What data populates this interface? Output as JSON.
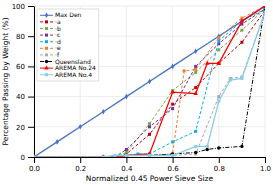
{
  "chart_data": {
    "type": "line",
    "xlabel": "Normalized 0.45 Power Sieve Size",
    "ylabel": "Percentage Passing by Weight (%)",
    "xlim": [
      0,
      1.0
    ],
    "ylim": [
      0,
      100
    ],
    "xticks": [
      {
        "value": 0,
        "label": "0.0"
      },
      0.2,
      0.4,
      0.6,
      0.8,
      {
        "value": 1.0,
        "label": "1.0"
      }
    ],
    "yticks": [
      0,
      20,
      40,
      60,
      80,
      100
    ],
    "grid": true,
    "legend": "upper left",
    "series": [
      {
        "name": "Max Den",
        "color": "#4472C4",
        "line_style": "solid",
        "marker": "diamond",
        "x": [
          0,
          0.1,
          0.2,
          0.3,
          0.4,
          0.5,
          0.6,
          0.7,
          0.8,
          0.9,
          1.0
        ],
        "values": [
          0,
          10,
          20,
          30,
          40,
          50,
          60,
          70,
          80,
          90,
          100
        ]
      },
      {
        "name": "·a",
        "color": "#C00000",
        "line_style": "dashed",
        "marker": "square",
        "x": [
          0,
          0.3,
          0.35,
          0.4,
          0.5,
          0.6,
          0.7,
          0.8,
          0.9,
          1.0
        ],
        "values": [
          0,
          0,
          0,
          2,
          15,
          35,
          46,
          62,
          76,
          97
        ]
      },
      {
        "name": "·b",
        "color": "#70AD47",
        "line_style": "dashed",
        "marker": "square",
        "x": [
          0,
          0.35,
          0.4,
          0.5,
          0.6,
          0.7,
          0.8,
          0.9,
          1.0
        ],
        "values": [
          0,
          0,
          3,
          22,
          44,
          56,
          71,
          84,
          98
        ]
      },
      {
        "name": "·c",
        "color": "#7030A0",
        "line_style": "dashed",
        "marker": "square",
        "x": [
          0,
          0.35,
          0.4,
          0.5,
          0.6,
          0.7,
          0.8,
          0.9,
          1.0
        ],
        "values": [
          0,
          0,
          5,
          20,
          32,
          60,
          75,
          88,
          98
        ]
      },
      {
        "name": "·d",
        "color": "#00B0F0",
        "line_style": "dashed",
        "marker": "square",
        "x": [
          0,
          0.35,
          0.4,
          0.45,
          0.5,
          0.6,
          0.7,
          0.8,
          0.9,
          1.0
        ],
        "values": [
          0,
          0,
          1,
          2,
          2,
          10,
          17,
          77,
          90,
          98
        ]
      },
      {
        "name": "·e",
        "color": "#ED7D31",
        "line_style": "dashed",
        "marker": "square",
        "x": [
          0,
          0.35,
          0.4,
          0.5,
          0.6,
          0.65,
          0.7,
          0.8,
          0.9,
          1.0
        ],
        "values": [
          0,
          0,
          1,
          1,
          2,
          57,
          58,
          79,
          92,
          100
        ]
      },
      {
        "name": "·f",
        "color": "#A9A9A9",
        "line_style": "dashed",
        "marker": "square",
        "x": [
          0,
          0.35,
          0.4,
          0.5,
          0.6,
          0.7,
          0.8,
          0.85,
          0.9,
          1.0
        ],
        "values": [
          0,
          0,
          1,
          1,
          1,
          2,
          40,
          52,
          53,
          96
        ]
      },
      {
        "name": "Queensland",
        "color": "#000000",
        "line_style": "dashdot",
        "marker": "circle",
        "x": [
          0,
          0.35,
          0.4,
          0.5,
          0.6,
          0.7,
          0.75,
          0.8,
          0.9,
          1.0
        ],
        "values": [
          0,
          0,
          1,
          1,
          2,
          3,
          5,
          6,
          7,
          100
        ]
      },
      {
        "name": "AREMA No.24",
        "color": "#FF0000",
        "line_style": "solid",
        "marker": "triangle",
        "x": [
          0,
          0.3,
          0.35,
          0.4,
          0.5,
          0.6,
          0.7,
          0.75,
          0.8,
          0.9,
          1.0
        ],
        "values": [
          0,
          0,
          0,
          1,
          2,
          43,
          42,
          62,
          62,
          90,
          100
        ]
      },
      {
        "name": "AREMA No.4",
        "color": "#87CEEB",
        "line_style": "solid",
        "marker": "square",
        "x": [
          0,
          0.3,
          0.35,
          0.4,
          0.5,
          0.6,
          0.7,
          0.75,
          0.8,
          0.85,
          0.9,
          1.0
        ],
        "values": [
          0,
          0,
          1,
          1,
          1,
          1,
          7,
          7,
          37,
          51,
          52,
          96
        ]
      }
    ]
  }
}
